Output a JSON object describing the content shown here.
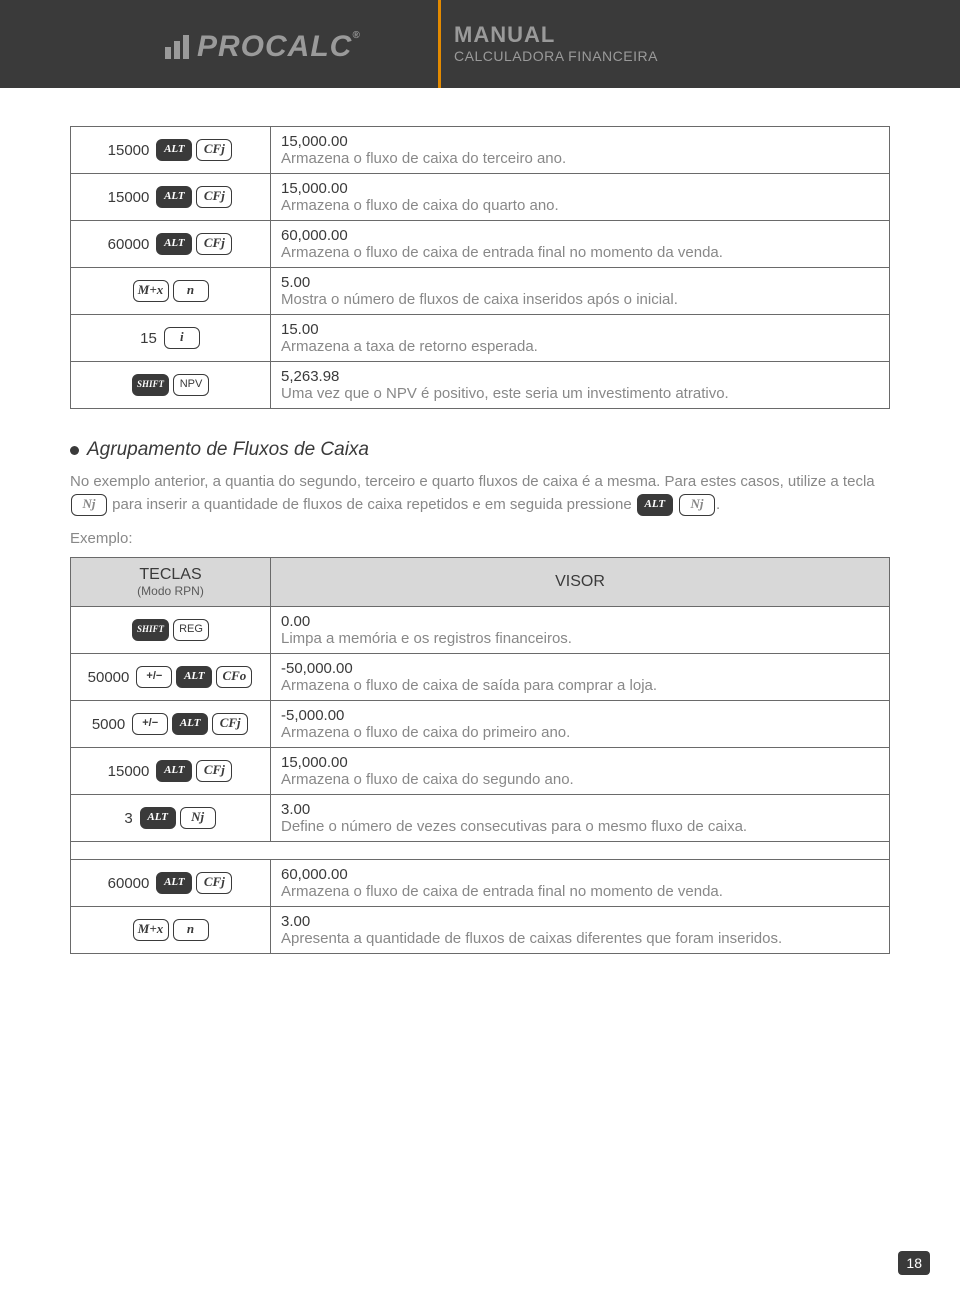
{
  "header": {
    "brand": "PROCALC",
    "title": "MANUAL",
    "subtitle": "CALCULADORA FINANCEIRA",
    "accent": "#e38a00"
  },
  "table1": {
    "rows": [
      {
        "pre": "15000",
        "keys": [
          "ALT",
          "CFj"
        ],
        "val": "15,000.00",
        "desc": "Armazena o fluxo de caixa do terceiro ano."
      },
      {
        "pre": "15000",
        "keys": [
          "ALT",
          "CFj"
        ],
        "val": "15,000.00",
        "desc": "Armazena o fluxo de caixa do quarto ano."
      },
      {
        "pre": "60000",
        "keys": [
          "ALT",
          "CFj"
        ],
        "val": "60,000.00",
        "desc": "Armazena o fluxo de caixa de entrada final no momento da venda."
      },
      {
        "pre": "",
        "keys": [
          "M+x",
          "n"
        ],
        "val": "5.00",
        "desc": "Mostra o número de fluxos de caixa inseridos após o inicial."
      },
      {
        "pre": "15",
        "keys": [
          "i"
        ],
        "val": "15.00",
        "desc": "Armazena a taxa de retorno esperada."
      },
      {
        "pre": "",
        "keys": [
          "SHIFT",
          "NPV"
        ],
        "val": "5,263.98",
        "desc": "Uma vez que o NPV é positivo, este seria um investimento atrativo."
      }
    ]
  },
  "section": {
    "title": "Agrupamento de Fluxos de Caixa",
    "body_prefix": "No exemplo anterior, a quantia do segundo, terceiro e quarto fluxos de caixa é a mesma. Para estes casos, utilize a tecla ",
    "body_mid": " para inserir a quantidade de fluxos de caixa repetidos e em seguida pressione ",
    "body_suffix": ".",
    "exemplo": "Exemplo:"
  },
  "table2": {
    "head_keys": "TECLAS",
    "head_keys_sub": "(Modo RPN)",
    "head_visor": "VISOR",
    "rows": [
      {
        "pre": "",
        "keys": [
          "SHIFT",
          "REG"
        ],
        "val": "0.00",
        "desc": "Limpa a memória e os registros financeiros."
      },
      {
        "pre": "50000",
        "keys": [
          "+/−",
          "ALT",
          "CFo"
        ],
        "val": "-50,000.00",
        "desc": "Armazena o fluxo de caixa de saída para comprar a loja."
      },
      {
        "pre": "5000",
        "keys": [
          "+/−",
          "ALT",
          "CFj"
        ],
        "val": "-5,000.00",
        "desc": "Armazena o fluxo de caixa do primeiro ano."
      },
      {
        "pre": "15000",
        "keys": [
          "ALT",
          "CFj"
        ],
        "val": "15,000.00",
        "desc": "Armazena o fluxo de caixa do segundo ano."
      },
      {
        "pre": "3",
        "keys": [
          "ALT",
          "Nj"
        ],
        "val": "3.00",
        "desc": "Define o número de vezes consecutivas para o mesmo fluxo de caixa."
      },
      {
        "spacer": true
      },
      {
        "pre": "60000",
        "keys": [
          "ALT",
          "CFj"
        ],
        "val": "60,000.00",
        "desc": "Armazena o fluxo de caixa de entrada final no momento de venda."
      },
      {
        "pre": "",
        "keys": [
          "M+x",
          "n"
        ],
        "val": "3.00",
        "desc": "Apresenta a quantidade de fluxos de caixas diferentes que foram inseridos."
      }
    ]
  },
  "pagenum": "18",
  "keystyles": {
    "ALT": {
      "class": "fill",
      "style": "font-style:italic;font-family:'Times New Roman',serif;font-weight:bold;"
    },
    "SHIFT": {
      "class": "fill",
      "style": "font-style:italic;font-family:'Times New Roman',serif;font-weight:bold;font-size:9px;"
    },
    "CFj": {
      "class": "serif"
    },
    "CFo": {
      "class": "serif"
    },
    "Nj": {
      "class": "serif"
    },
    "NPV": {
      "class": "",
      "style": "font-size:11px;"
    },
    "REG": {
      "class": "",
      "style": "font-size:11px;"
    },
    "M+x": {
      "class": "serif",
      "style": ""
    },
    "n": {
      "class": "serif"
    },
    "i": {
      "class": "serif"
    },
    "+/−": {
      "class": "",
      "style": "font-weight:bold;"
    }
  }
}
